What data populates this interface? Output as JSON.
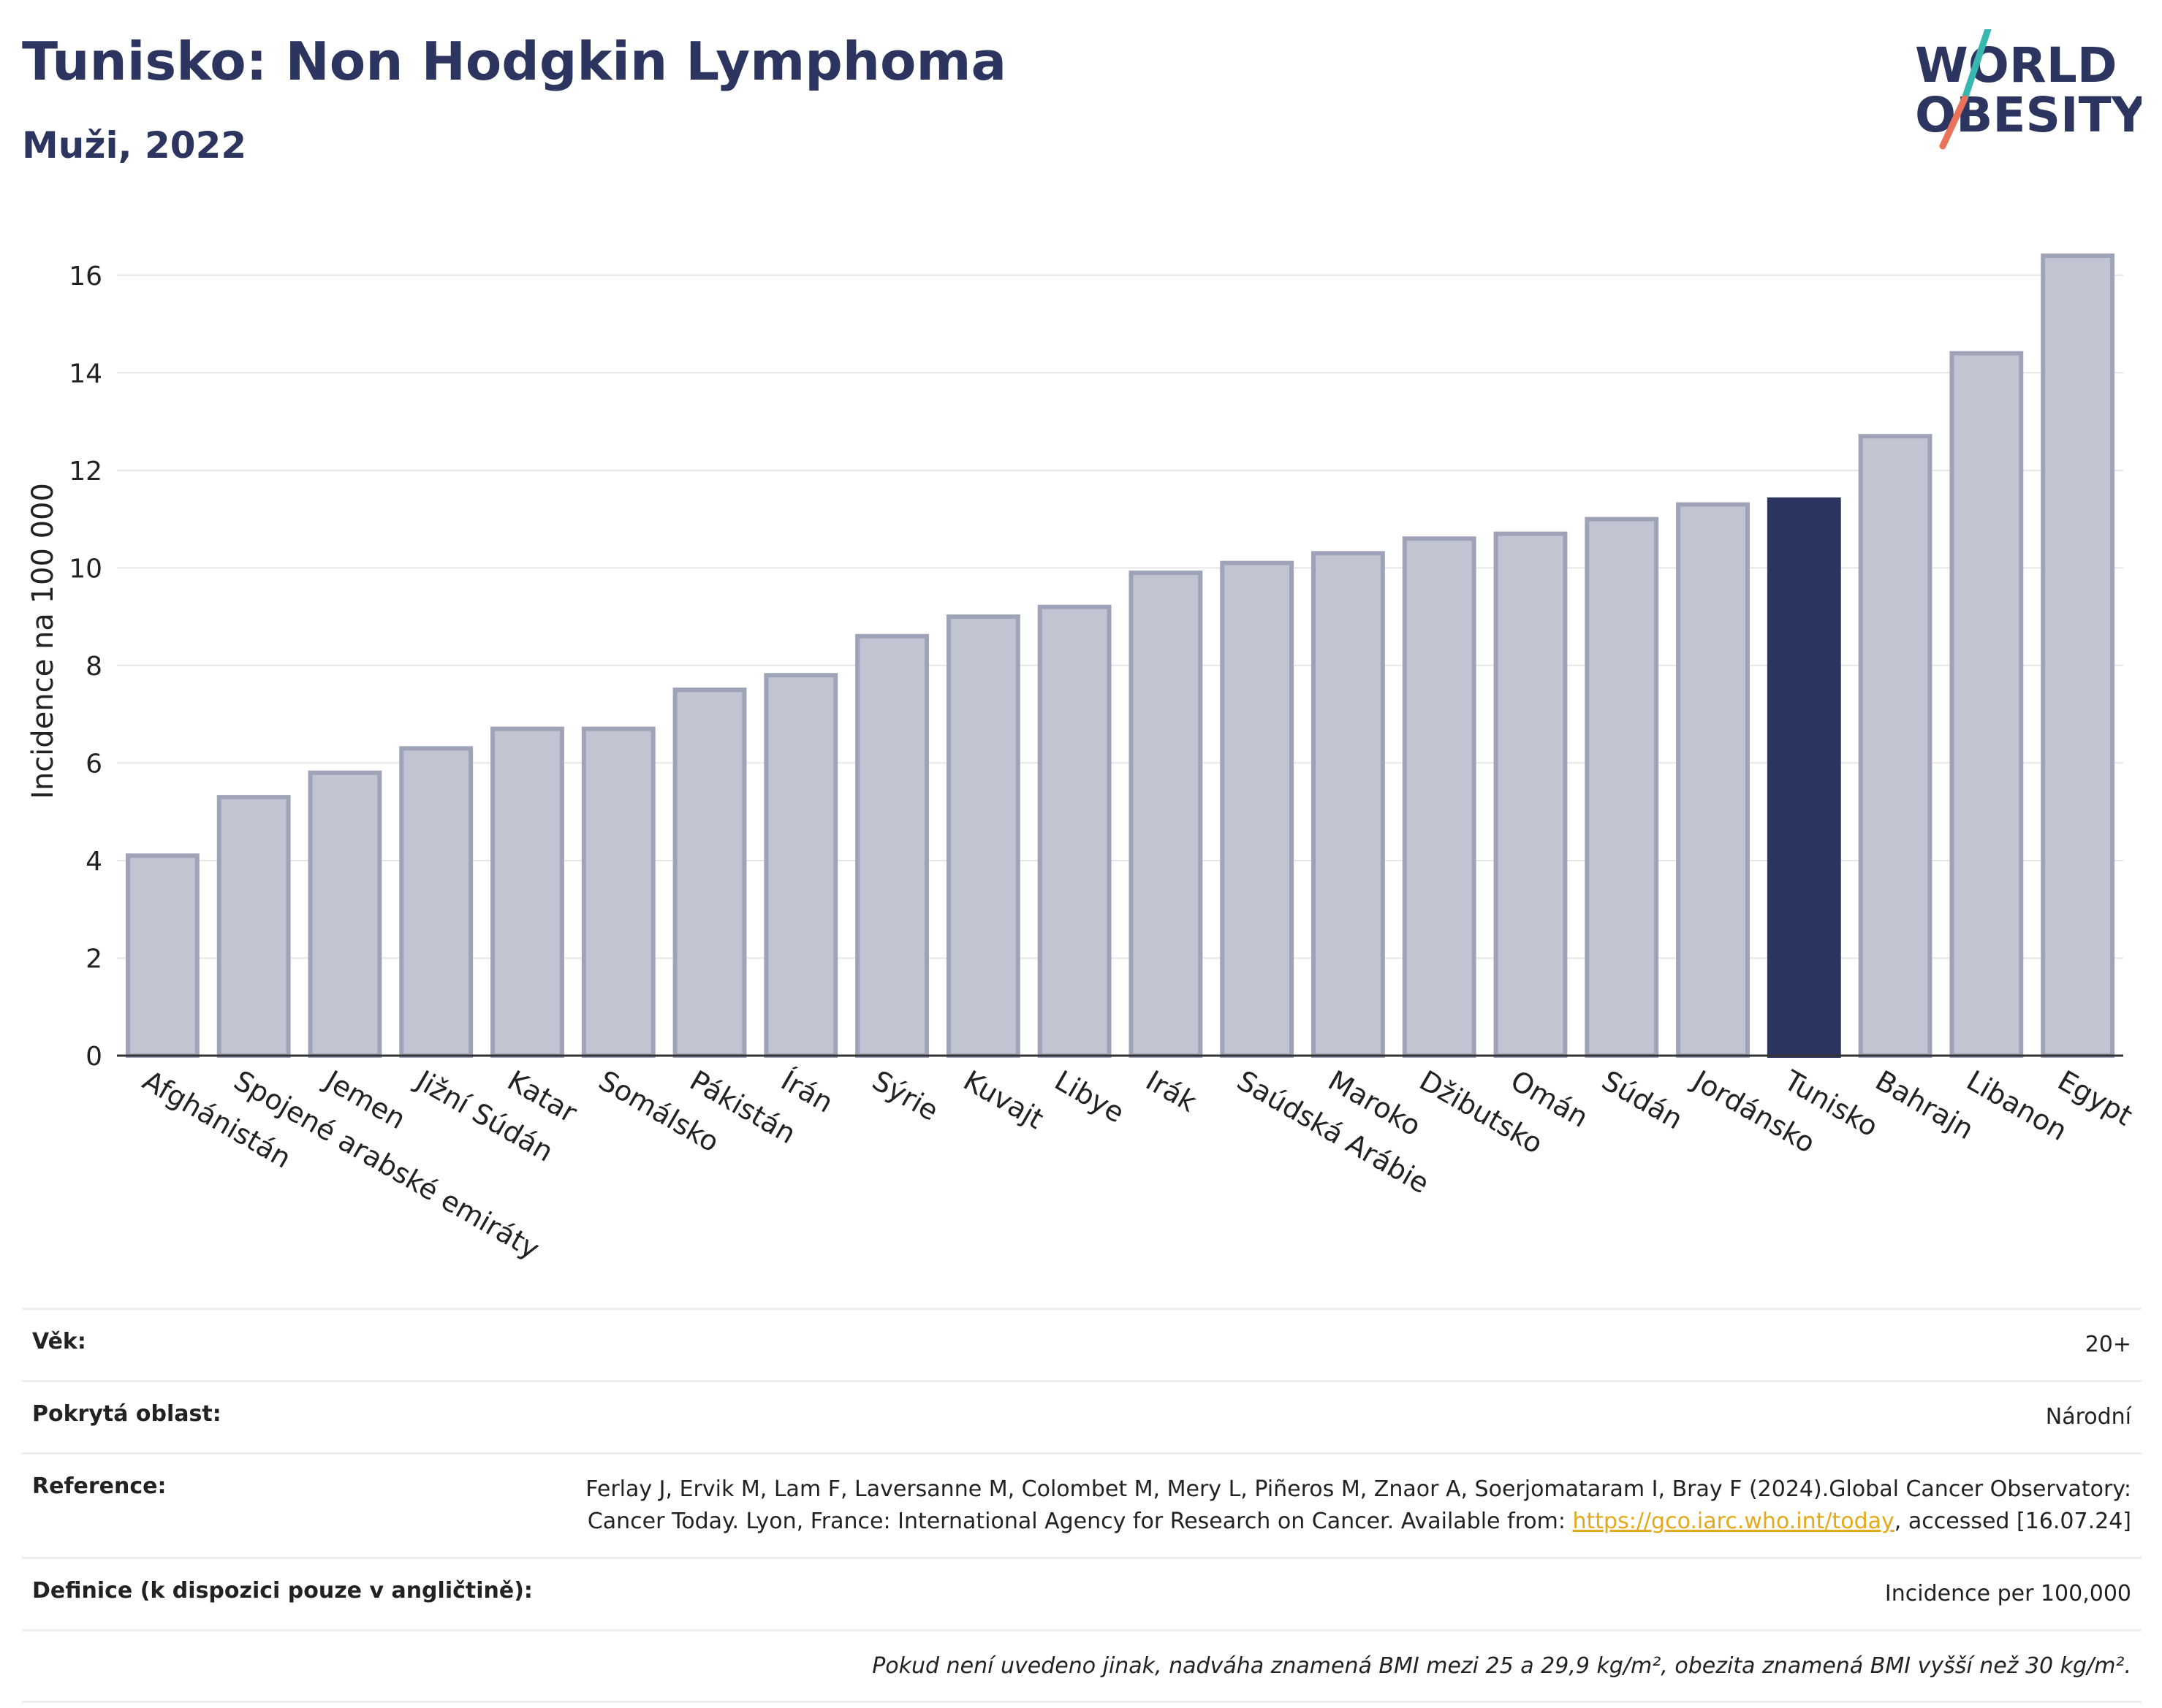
{
  "header": {
    "title": "Tunisko: Non Hodgkin Lymphoma",
    "subtitle": "Muži, 2022"
  },
  "logo": {
    "line1": "WORLD",
    "line2": "OBESITY",
    "colors": {
      "text": "#2b3560",
      "teal": "#38b6b0",
      "coral": "#e8735a"
    }
  },
  "chart_data": {
    "type": "bar",
    "ylabel": "Incidence na 100 000",
    "ylim": [
      0,
      17
    ],
    "yticks": [
      0,
      2,
      4,
      6,
      8,
      10,
      12,
      14,
      16
    ],
    "grid": true,
    "highlight": "Tunisko",
    "colors": {
      "bar": "#c1c4d1",
      "bar_edge": "#9ea3b8",
      "highlight": "#2b3560"
    },
    "categories": [
      "Afghánistán",
      "Spojené arabské emiráty",
      "Jemen",
      "Jižní Súdán",
      "Katar",
      "Somálsko",
      "Pákistán",
      "Írán",
      "Sýrie",
      "Kuvajt",
      "Libye",
      "Irák",
      "Saúdská Arábie",
      "Maroko",
      "Džibutsko",
      "Omán",
      "Súdán",
      "Jordánsko",
      "Tunisko",
      "Bahrajn",
      "Libanon",
      "Egypt"
    ],
    "values": [
      4.1,
      5.3,
      5.8,
      6.3,
      6.7,
      6.7,
      7.5,
      7.8,
      8.6,
      9.0,
      9.2,
      9.9,
      10.1,
      10.3,
      10.6,
      10.7,
      11.0,
      11.3,
      11.4,
      12.7,
      14.4,
      16.4
    ]
  },
  "info": {
    "age_label": "Věk:",
    "age_value": "20+",
    "area_label": "Pokrytá oblast:",
    "area_value": "Národní",
    "ref_label": "Reference:",
    "ref_text": "Ferlay J, Ervik M, Lam F, Laversanne M, Colombet M, Mery L, Piñeros M, Znaor A, Soerjomataram I, Bray F (2024).Global Cancer Observatory: Cancer Today. Lyon, France: International Agency for Research on Cancer. Available from: ",
    "ref_link": "https://gco.iarc.who.int/today",
    "ref_tail": ", accessed [16.07.24]",
    "def_label": "Definice (k dispozici pouze v angličtině):",
    "def_value": "Incidence per 100,000",
    "note": "Pokud není uvedeno jinak, nadváha znamená BMI mezi 25 a 29,9 kg/m², obezita znamená BMI vyšší než 30 kg/m²."
  }
}
